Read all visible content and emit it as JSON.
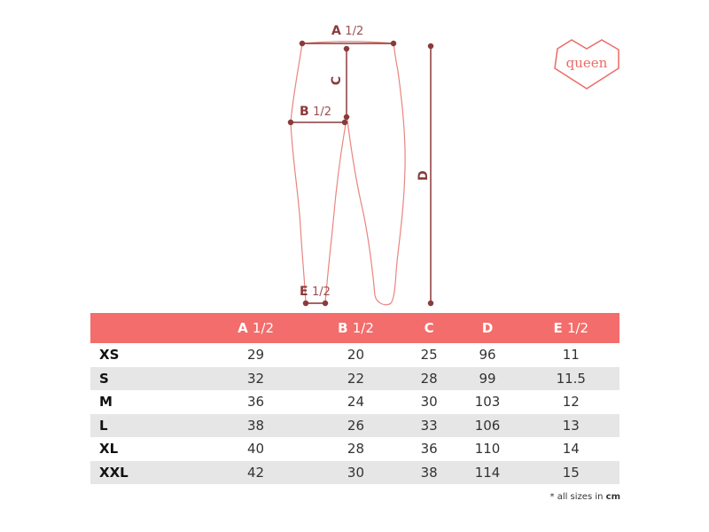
{
  "diagram": {
    "labels": {
      "a": {
        "letter": "A",
        "fraction": "1/2"
      },
      "b": {
        "letter": "B",
        "fraction": "1/2"
      },
      "c": {
        "letter": "C"
      },
      "d": {
        "letter": "D"
      },
      "e": {
        "letter": "E",
        "fraction": "1/2"
      }
    },
    "colors": {
      "outline": "#e8857f",
      "measure": "#8b3a3a",
      "logo": "#ec6a66"
    }
  },
  "logo": {
    "text": "queen"
  },
  "table": {
    "header_color": "#f26d6b",
    "columns": [
      {
        "letter": "",
        "fraction": ""
      },
      {
        "letter": "A",
        "fraction": "1/2"
      },
      {
        "letter": "B",
        "fraction": "1/2"
      },
      {
        "letter": "C",
        "fraction": ""
      },
      {
        "letter": "D",
        "fraction": ""
      },
      {
        "letter": "E",
        "fraction": "1/2"
      }
    ],
    "rows": [
      [
        "XS",
        "29",
        "20",
        "25",
        "96",
        "11"
      ],
      [
        "S",
        "32",
        "22",
        "28",
        "99",
        "11.5"
      ],
      [
        "M",
        "36",
        "24",
        "30",
        "103",
        "12"
      ],
      [
        "L",
        "38",
        "26",
        "33",
        "106",
        "13"
      ],
      [
        "XL",
        "40",
        "28",
        "36",
        "110",
        "14"
      ],
      [
        "XXL",
        "42",
        "30",
        "38",
        "114",
        "15"
      ]
    ]
  },
  "note": {
    "prefix": "* all sizes in",
    "unit": "cm"
  }
}
